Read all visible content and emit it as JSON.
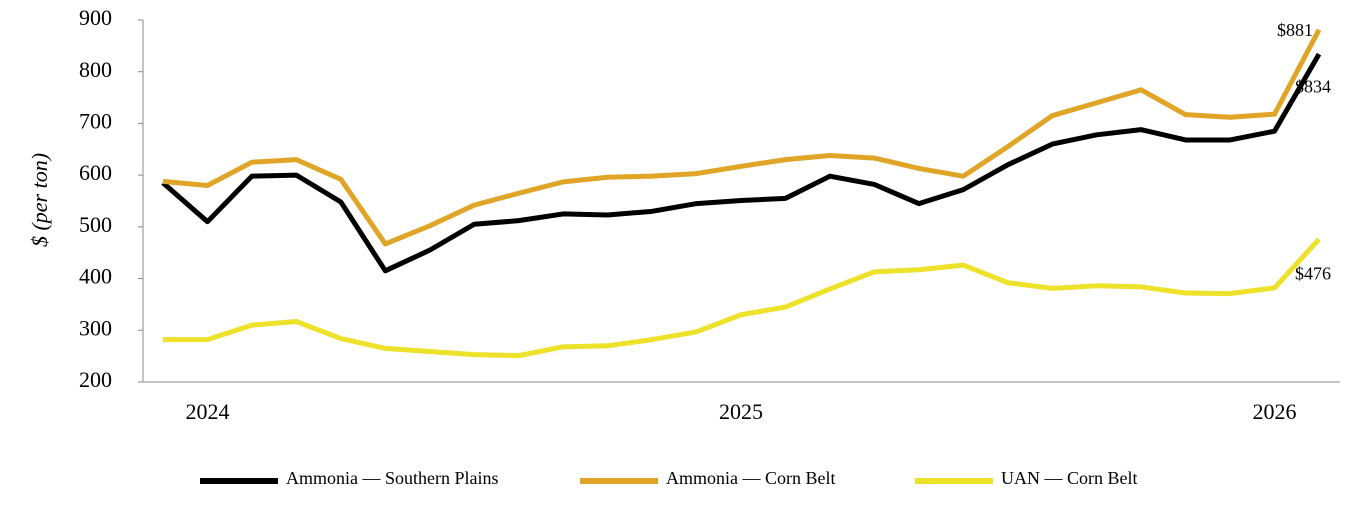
{
  "chart_data": {
    "type": "line",
    "ylabel": "$ (per ton)",
    "categories": [
      null,
      "2024",
      null,
      null,
      null,
      null,
      null,
      null,
      null,
      null,
      null,
      null,
      null,
      "2025",
      null,
      null,
      null,
      null,
      null,
      null,
      null,
      null,
      null,
      null,
      null,
      "2026",
      null
    ],
    "ylim": [
      200,
      900
    ],
    "yticks": [
      200,
      300,
      400,
      500,
      600,
      700,
      800,
      900
    ],
    "legend": "bottom",
    "series": [
      {
        "name": "Ammonia — Southern Plains",
        "color": "#000000",
        "values": [
          585,
          510,
          598,
          600,
          548,
          415,
          455,
          505,
          512,
          525,
          523,
          530,
          545,
          551,
          555,
          598,
          582,
          545,
          572,
          620,
          660,
          678,
          688,
          668,
          668,
          685,
          834
        ],
        "value_labels": [
          null,
          null,
          null,
          null,
          null,
          null,
          null,
          null,
          null,
          null,
          null,
          null,
          null,
          null,
          null,
          null,
          null,
          null,
          null,
          null,
          null,
          null,
          null,
          null,
          null,
          null,
          "$834"
        ]
      },
      {
        "name": "Ammonia — Corn Belt",
        "color": "#e0a526",
        "values": [
          588,
          580,
          625,
          630,
          592,
          467,
          502,
          542,
          565,
          587,
          596,
          598,
          603,
          617,
          630,
          638,
          633,
          613,
          598,
          655,
          715,
          740,
          765,
          717,
          712,
          718,
          881
        ],
        "value_labels": [
          null,
          null,
          null,
          null,
          null,
          null,
          null,
          null,
          null,
          null,
          null,
          null,
          null,
          null,
          null,
          null,
          null,
          null,
          null,
          null,
          null,
          null,
          null,
          null,
          null,
          null,
          "$881"
        ]
      },
      {
        "name": "UAN — Corn Belt",
        "color": "#ede12a",
        "values": [
          282,
          282,
          310,
          317,
          284,
          265,
          259,
          253,
          251,
          268,
          270,
          282,
          297,
          330,
          345,
          380,
          413,
          417,
          426,
          392,
          381,
          386,
          384,
          372,
          371,
          382,
          476
        ],
        "value_labels": [
          null,
          null,
          null,
          null,
          null,
          null,
          null,
          null,
          null,
          null,
          null,
          null,
          null,
          null,
          null,
          null,
          null,
          null,
          null,
          null,
          null,
          null,
          null,
          null,
          null,
          null,
          "$476"
        ]
      }
    ]
  }
}
